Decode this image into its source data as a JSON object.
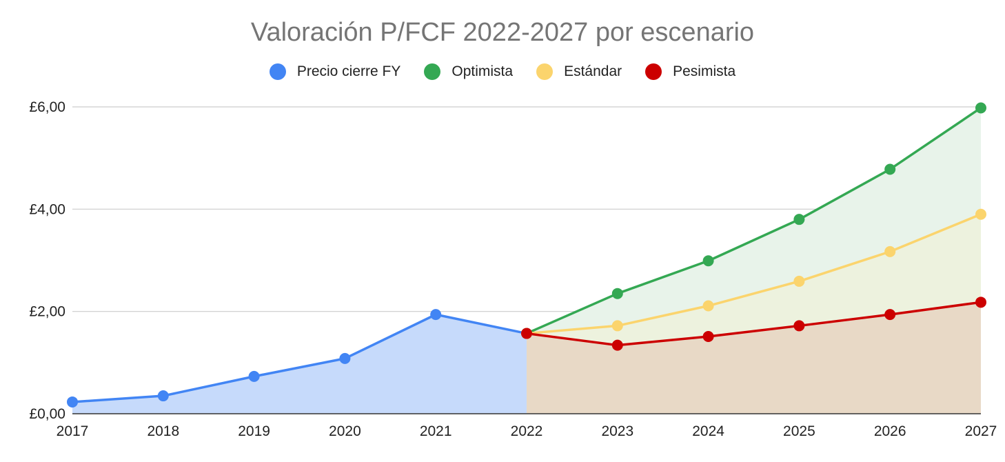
{
  "chart_data": {
    "type": "area",
    "title": "Valoración P/FCF 2022-2027 por escenario",
    "xlabel": "",
    "ylabel": "",
    "categories": [
      "2017",
      "2018",
      "2019",
      "2020",
      "2021",
      "2022",
      "2023",
      "2024",
      "2025",
      "2026",
      "2027"
    ],
    "ylim": [
      0,
      6
    ],
    "y_ticks": [
      0,
      2,
      4,
      6
    ],
    "y_tick_labels": [
      "£0,00",
      "£2,00",
      "£4,00",
      "£6,00"
    ],
    "gridlines": true,
    "legend_position": "top-center",
    "series": [
      {
        "name": "Precio cierre FY",
        "color": "#4285F4",
        "fill": "#c6dafb",
        "values": [
          0.23,
          0.35,
          0.73,
          1.08,
          1.94,
          1.57,
          null,
          null,
          null,
          null,
          null
        ]
      },
      {
        "name": "Optimista",
        "color": "#34A853",
        "fill": "#e8f3ea",
        "values": [
          null,
          null,
          null,
          null,
          null,
          1.57,
          2.35,
          2.99,
          3.8,
          4.78,
          5.98
        ]
      },
      {
        "name": "Estándar",
        "color": "#FBD46D",
        "fill": "#edf2de",
        "values": [
          null,
          null,
          null,
          null,
          null,
          1.57,
          1.72,
          2.11,
          2.59,
          3.17,
          3.9
        ]
      },
      {
        "name": "Pesimista",
        "color": "#CC0000",
        "fill": "#e8d9c6",
        "values": [
          null,
          null,
          null,
          null,
          null,
          1.57,
          1.34,
          1.51,
          1.72,
          1.94,
          2.18
        ]
      }
    ]
  }
}
